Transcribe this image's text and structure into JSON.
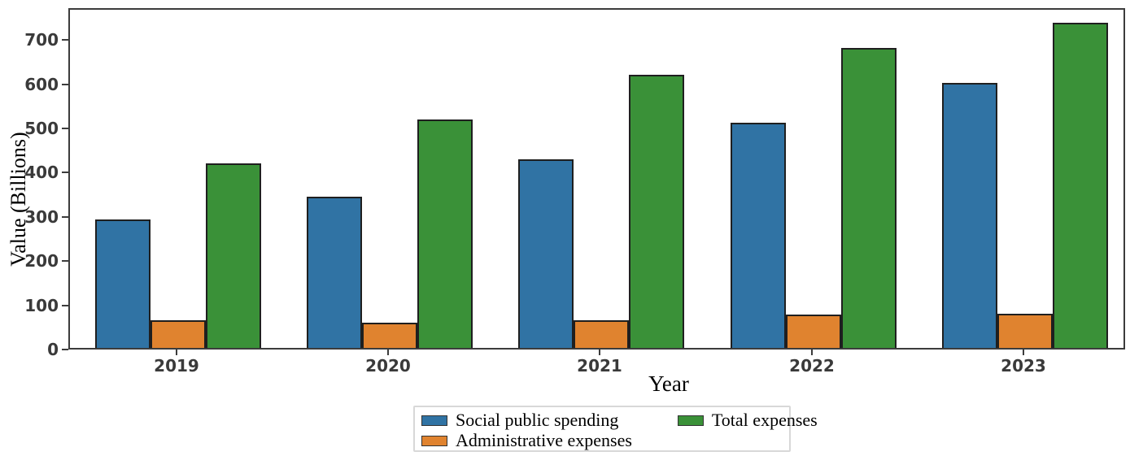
{
  "figure_title": "",
  "chart_data": {
    "type": "bar",
    "title": "",
    "xlabel": "Year",
    "ylabel": "Value (Billions)",
    "categories": [
      "2019",
      "2020",
      "2021",
      "2022",
      "2023"
    ],
    "series": [
      {
        "name": "Social public spending",
        "color": "#3073a4",
        "values": [
          290,
          341,
          426,
          510,
          599
        ]
      },
      {
        "name": "Administrative expenses",
        "color": "#e0832f",
        "values": [
          63,
          57,
          62,
          76,
          78
        ]
      },
      {
        "name": "Total expenses",
        "color": "#3a9138",
        "values": [
          417,
          517,
          618,
          678,
          735
        ]
      }
    ],
    "ylim": [
      0,
      772
    ],
    "yticks": [
      0,
      100,
      200,
      300,
      400,
      500,
      600,
      700
    ],
    "grid": false,
    "legend_position": "bottom-center",
    "bar_edge_color": "#1f1f1f",
    "tick_label_color": "#3a3a3a",
    "spine_color": "#3c3c3c"
  }
}
